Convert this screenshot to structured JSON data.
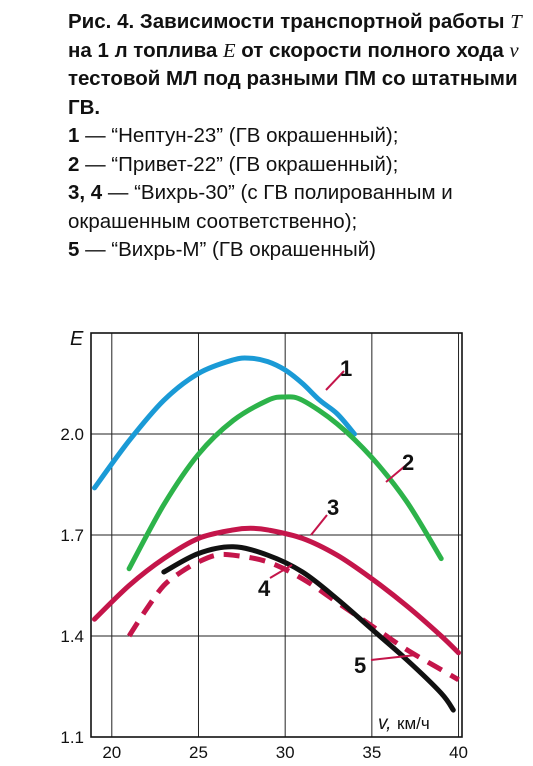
{
  "caption": {
    "title_prefix": "Рис. 4. Зависимости транспортной работы",
    "title_T": "T",
    "title_mid1": "на 1 л топлива",
    "title_E": "E",
    "title_mid2": "от скорости полного хода",
    "title_v": "v",
    "title_suffix": "тестовой МЛ под разными ПМ со штатными ГВ.",
    "legend": [
      {
        "num": "1",
        "text": " — “Нептун-23” (ГВ окрашенный);"
      },
      {
        "num": "2",
        "text": " — “Привет-22” (ГВ окрашенный);"
      },
      {
        "num": "3, 4",
        "text": " — “Вихрь-30” (с ГВ полированным и окрашенным соответственно);"
      },
      {
        "num": "5",
        "text": " — “Вихрь-М” (ГВ окрашенный)"
      }
    ]
  },
  "chart_data": {
    "type": "line",
    "ylabel": "E",
    "xlabel_v": "v,",
    "xlabel_unit": "км/ч",
    "xlim": [
      18.8,
      40.2
    ],
    "ylim": [
      1.1,
      2.3
    ],
    "xticks": [
      20,
      25,
      30,
      35,
      40
    ],
    "yticks": [
      1.1,
      1.4,
      1.7,
      2.0
    ],
    "ytick_labels": [
      "1.1",
      "1.4",
      "1.7",
      "2.0"
    ],
    "grid": true,
    "series": [
      {
        "name": "1",
        "color": "#1a9ad6",
        "dashed": false,
        "x": [
          19,
          21,
          23,
          25,
          27,
          28,
          29,
          30,
          31,
          32,
          33,
          34
        ],
        "y": [
          1.84,
          1.98,
          2.1,
          2.18,
          2.22,
          2.225,
          2.215,
          2.19,
          2.15,
          2.1,
          2.06,
          2.0
        ]
      },
      {
        "name": "2",
        "color": "#2db34a",
        "dashed": false,
        "x": [
          21,
          23,
          25,
          27,
          29,
          30,
          31,
          33,
          35,
          37,
          39
        ],
        "y": [
          1.6,
          1.79,
          1.94,
          2.04,
          2.1,
          2.11,
          2.1,
          2.03,
          1.93,
          1.8,
          1.63
        ]
      },
      {
        "name": "3",
        "color": "#c4154a",
        "dashed": false,
        "x": [
          19,
          21,
          23,
          25,
          27,
          28,
          29,
          31,
          33,
          35,
          37,
          39,
          40
        ],
        "y": [
          1.45,
          1.55,
          1.63,
          1.69,
          1.715,
          1.72,
          1.715,
          1.69,
          1.64,
          1.57,
          1.49,
          1.4,
          1.35
        ]
      },
      {
        "name": "4",
        "color": "#c4154a",
        "dashed": true,
        "x": [
          21,
          22,
          23,
          24,
          25,
          26,
          27,
          29,
          31,
          33,
          35,
          37,
          39,
          40
        ],
        "y": [
          1.4,
          1.48,
          1.55,
          1.59,
          1.62,
          1.64,
          1.64,
          1.62,
          1.57,
          1.5,
          1.43,
          1.36,
          1.3,
          1.27
        ]
      },
      {
        "name": "5",
        "color": "#111111",
        "dashed": false,
        "x": [
          23,
          25,
          27,
          29,
          31,
          33,
          35,
          37,
          39,
          39.7
        ],
        "y": [
          1.59,
          1.645,
          1.665,
          1.64,
          1.59,
          1.51,
          1.42,
          1.33,
          1.23,
          1.18
        ]
      }
    ],
    "labels": [
      {
        "text": "1",
        "series": "1"
      },
      {
        "text": "2",
        "series": "2"
      },
      {
        "text": "3",
        "series": "3"
      },
      {
        "text": "4",
        "series": "4"
      },
      {
        "text": "5",
        "series": "5"
      }
    ]
  }
}
